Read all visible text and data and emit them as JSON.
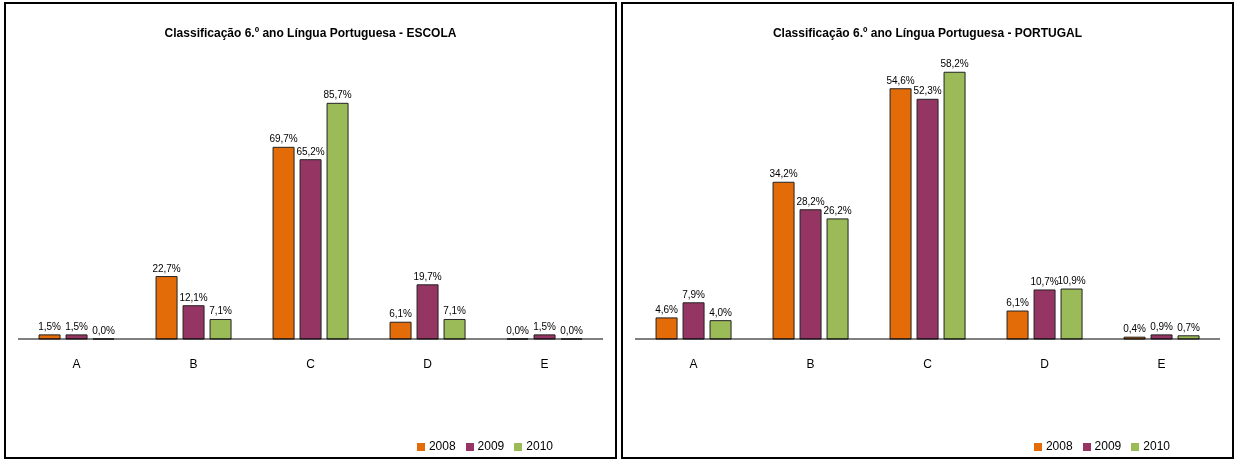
{
  "chart_data": [
    {
      "type": "bar",
      "title": "Classificação 6.º ano Língua Portuguesa - ESCOLA",
      "categories": [
        "A",
        "B",
        "C",
        "D",
        "E"
      ],
      "legend": "bottom right",
      "series": [
        {
          "name": "2008",
          "color": "#e36c09",
          "values": [
            1.5,
            22.7,
            69.7,
            6.1,
            0.0
          ],
          "value_labels": [
            "1,5%",
            "22,7%",
            "69,7%",
            "6,1%",
            "0,0%"
          ]
        },
        {
          "name": "2009",
          "color": "#953563",
          "values": [
            1.5,
            12.1,
            65.2,
            19.7,
            1.5
          ],
          "value_labels": [
            "1,5%",
            "12,1%",
            "65,2%",
            "19,7%",
            "1,5%"
          ]
        },
        {
          "name": "2010",
          "color": "#9bbb59",
          "values": [
            0.0,
            7.1,
            85.7,
            7.1,
            0.0
          ],
          "value_labels": [
            "0,0%",
            "7,1%",
            "85,7%",
            "7,1%",
            "0,0%"
          ]
        }
      ]
    },
    {
      "type": "bar",
      "title": "Classificação 6.º ano Língua Portuguesa -  PORTUGAL",
      "categories": [
        "A",
        "B",
        "C",
        "D",
        "E"
      ],
      "legend": "bottom right",
      "series": [
        {
          "name": "2008",
          "color": "#e36c09",
          "values": [
            4.6,
            34.2,
            54.6,
            6.1,
            0.4
          ],
          "value_labels": [
            "4,6%",
            "34,2%",
            "54,6%",
            "6,1%",
            "0,4%"
          ]
        },
        {
          "name": "2009",
          "color": "#953563",
          "values": [
            7.9,
            28.2,
            52.3,
            10.7,
            0.9
          ],
          "value_labels": [
            "7,9%",
            "28,2%",
            "52,3%",
            "10,7%",
            "0,9%"
          ]
        },
        {
          "name": "2010",
          "color": "#9bbb59",
          "values": [
            4.0,
            26.2,
            58.2,
            10.9,
            0.7
          ],
          "value_labels": [
            "4,0%",
            "26,2%",
            "58,2%",
            "10,9%",
            "0,7%"
          ]
        }
      ]
    }
  ]
}
